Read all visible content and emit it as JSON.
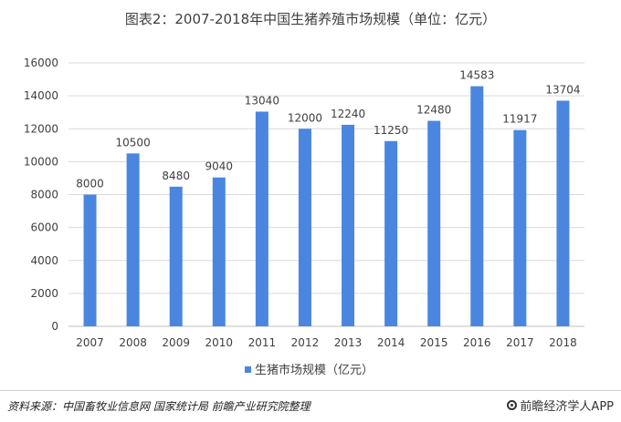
{
  "chart_data": {
    "type": "bar",
    "title": "图表2：2007-2018年中国生猪养殖市场规模（单位：亿元）",
    "categories": [
      "2007",
      "2008",
      "2009",
      "2010",
      "2011",
      "2012",
      "2013",
      "2014",
      "2015",
      "2016",
      "2017",
      "2018"
    ],
    "series": [
      {
        "name": "生猪市场规模（亿元）",
        "values": [
          8000,
          10500,
          8480,
          9040,
          13040,
          12000,
          12240,
          11250,
          12480,
          14583,
          11917,
          13704
        ]
      }
    ],
    "ylim": [
      0,
      16000
    ],
    "yticks": [
      0,
      2000,
      4000,
      6000,
      8000,
      10000,
      12000,
      14000,
      16000
    ],
    "grid": true,
    "legend_position": "bottom",
    "bar_color": "#4a86e0"
  },
  "footer": {
    "source": "资料来源：中国畜牧业信息网 国家统计局 前瞻产业研究院整理",
    "brand": "前瞻经济学人APP",
    "brand_icon": "qianzhan-logo-icon"
  }
}
